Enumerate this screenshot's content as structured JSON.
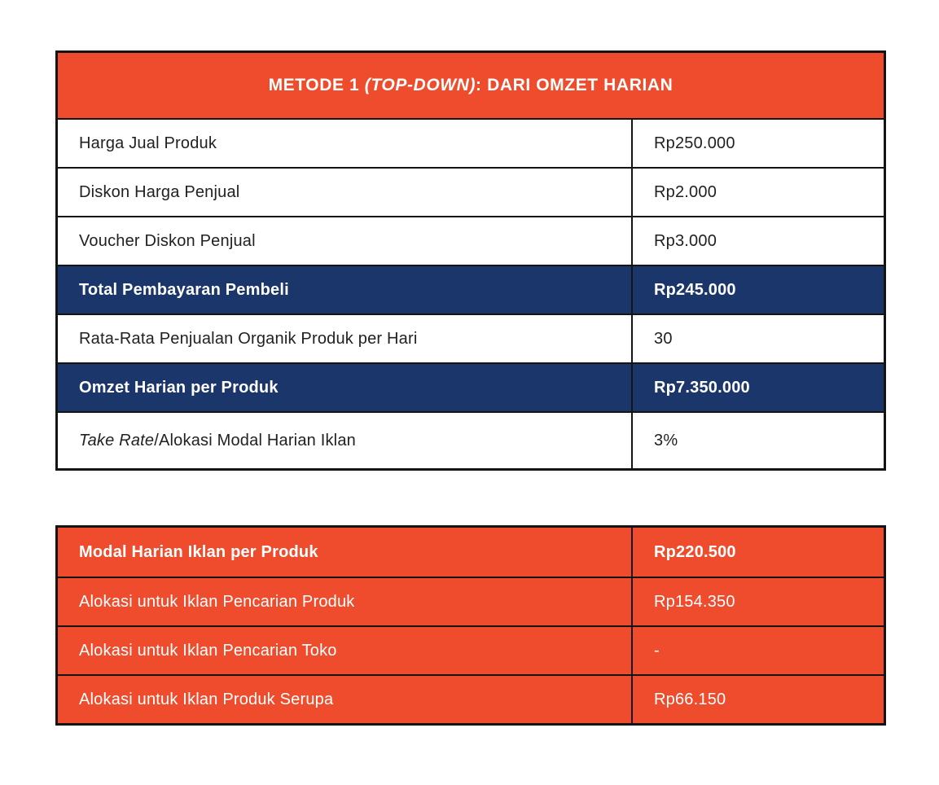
{
  "colors": {
    "orange": "#EE4C2C",
    "navy": "#1A366B",
    "border": "#141414",
    "text_dark": "#212121",
    "text_light": "#FFFFFF"
  },
  "table1": {
    "header": {
      "prefix": "METODE 1 ",
      "italic_part": "(TOP-DOWN)",
      "suffix": ": DARI OMZET HARIAN"
    },
    "rows": [
      {
        "label": "Harga Jual Produk",
        "value": "Rp250.000",
        "style": "white"
      },
      {
        "label": "Diskon Harga Penjual",
        "value": "Rp2.000",
        "style": "white"
      },
      {
        "label": "Voucher Diskon Penjual",
        "value": "Rp3.000",
        "style": "white"
      },
      {
        "label": "Total Pembayaran Pembeli",
        "value": "Rp245.000",
        "style": "navy"
      },
      {
        "label": "Rata-Rata Penjualan Organik Produk per Hari",
        "value": "30",
        "style": "white"
      },
      {
        "label": "Omzet Harian per Produk",
        "value": "Rp7.350.000",
        "style": "navy"
      },
      {
        "label_italic": "Take Rate",
        "label": "/Alokasi Modal Harian Iklan",
        "value": "3%",
        "style": "white"
      }
    ]
  },
  "table2": {
    "rows": [
      {
        "label": "Modal Harian Iklan per Produk",
        "value": "Rp220.500",
        "bold": true
      },
      {
        "label": "Alokasi untuk Iklan Pencarian Produk",
        "value": "Rp154.350",
        "bold": false
      },
      {
        "label": "Alokasi untuk Iklan Pencarian Toko",
        "value": "-",
        "bold": false
      },
      {
        "label": "Alokasi untuk Iklan Produk Serupa",
        "value": "Rp66.150",
        "bold": false
      }
    ]
  }
}
